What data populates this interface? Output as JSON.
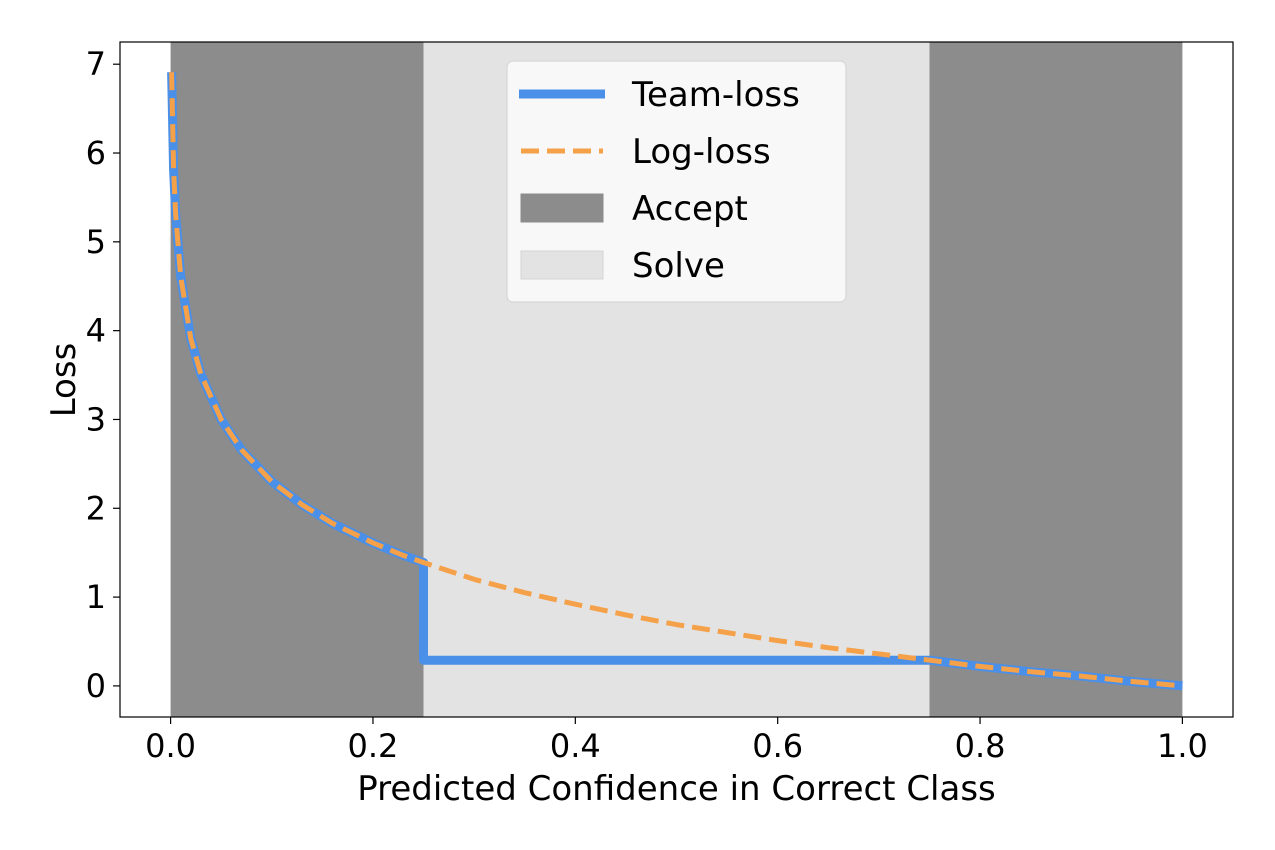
{
  "chart_data": {
    "type": "line",
    "title": "",
    "xlabel": "Predicted Confidence in Correct Class",
    "ylabel": "Loss",
    "xlim": [
      -0.05,
      1.05
    ],
    "ylim": [
      -0.35,
      7.25
    ],
    "xticks": [
      0.0,
      0.2,
      0.4,
      0.6,
      0.8,
      1.0
    ],
    "xtick_labels": [
      "0.0",
      "0.2",
      "0.4",
      "0.6",
      "0.8",
      "1.0"
    ],
    "yticks": [
      0,
      1,
      2,
      3,
      4,
      5,
      6,
      7
    ],
    "ytick_labels": [
      "0",
      "1",
      "2",
      "3",
      "4",
      "5",
      "6",
      "7"
    ],
    "grid": false,
    "legend_position": "top-center",
    "regions": [
      {
        "name": "Accept",
        "x_ranges": [
          [
            0.0,
            0.25
          ],
          [
            0.75,
            1.0
          ]
        ],
        "color": "#8c8c8c"
      },
      {
        "name": "Solve",
        "x_ranges": [
          [
            0.25,
            0.75
          ]
        ],
        "color": "#e3e3e3"
      }
    ],
    "series": [
      {
        "name": "Team-loss",
        "style": "solid",
        "color": "#4a8fe8",
        "x": [
          0.001,
          0.003,
          0.005,
          0.01,
          0.02,
          0.03,
          0.05,
          0.07,
          0.1,
          0.13,
          0.16,
          0.2,
          0.23,
          0.25,
          0.25,
          0.3,
          0.4,
          0.5,
          0.6,
          0.7,
          0.75,
          0.8,
          0.85,
          0.9,
          0.95,
          1.0
        ],
        "y": [
          6.91,
          5.81,
          5.3,
          4.61,
          3.91,
          3.51,
          3.0,
          2.66,
          2.3,
          2.04,
          1.83,
          1.61,
          1.47,
          1.39,
          0.29,
          0.29,
          0.29,
          0.29,
          0.29,
          0.29,
          0.29,
          0.22,
          0.16,
          0.11,
          0.05,
          0.0
        ]
      },
      {
        "name": "Log-loss",
        "style": "dashed",
        "color": "#f5a14a",
        "x": [
          0.001,
          0.003,
          0.005,
          0.01,
          0.02,
          0.03,
          0.05,
          0.07,
          0.1,
          0.13,
          0.16,
          0.2,
          0.23,
          0.25,
          0.3,
          0.35,
          0.4,
          0.45,
          0.5,
          0.55,
          0.6,
          0.65,
          0.7,
          0.75,
          0.8,
          0.85,
          0.9,
          0.95,
          1.0
        ],
        "y": [
          6.91,
          5.81,
          5.3,
          4.61,
          3.91,
          3.51,
          3.0,
          2.66,
          2.3,
          2.04,
          1.83,
          1.61,
          1.47,
          1.39,
          1.2,
          1.05,
          0.92,
          0.8,
          0.69,
          0.6,
          0.51,
          0.43,
          0.36,
          0.29,
          0.22,
          0.16,
          0.11,
          0.05,
          0.0
        ]
      }
    ],
    "legend": [
      {
        "label": "Team-loss",
        "kind": "line-solid",
        "color": "#4a8fe8"
      },
      {
        "label": "Log-loss",
        "kind": "line-dashed",
        "color": "#f5a14a"
      },
      {
        "label": "Accept",
        "kind": "patch",
        "color": "#8c8c8c"
      },
      {
        "label": "Solve",
        "kind": "patch",
        "color": "#e3e3e3"
      }
    ]
  }
}
